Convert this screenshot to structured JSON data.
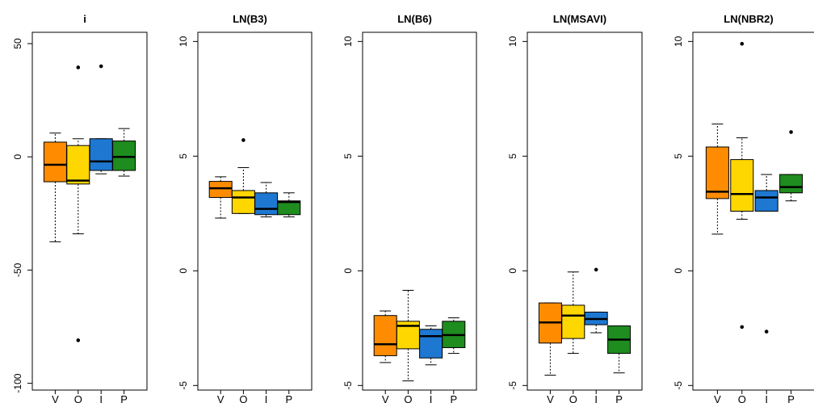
{
  "chart_data": [
    {
      "type": "box",
      "title": "i",
      "ylim": [
        -103,
        55
      ],
      "yticks": [
        50,
        0,
        -50,
        -100
      ],
      "categories": [
        "V",
        "O",
        "I",
        "P"
      ],
      "boxes": [
        {
          "category": "V",
          "whisker_low": -37.5,
          "q1": -11,
          "median": -3.5,
          "q3": 6.5,
          "whisker_high": 10.5,
          "outliers": []
        },
        {
          "category": "O",
          "whisker_low": -34,
          "q1": -12,
          "median": -10.5,
          "q3": 5,
          "whisker_high": 8,
          "outliers": [
            39.5,
            -81
          ]
        },
        {
          "category": "I",
          "whisker_low": -7.5,
          "q1": -6,
          "median": -2,
          "q3": 8,
          "whisker_high": 8,
          "outliers": [
            40
          ]
        },
        {
          "category": "P",
          "whisker_low": -8.5,
          "q1": -6,
          "median": 0,
          "q3": 7,
          "whisker_high": 12.5,
          "outliers": []
        }
      ]
    },
    {
      "type": "box",
      "title": "LN(B3)",
      "ylim": [
        -5.2,
        10.4
      ],
      "yticks": [
        10,
        5,
        0,
        -5
      ],
      "categories": [
        "V",
        "O",
        "I",
        "P"
      ],
      "boxes": [
        {
          "category": "V",
          "whisker_low": 2.3,
          "q1": 3.2,
          "median": 3.6,
          "q3": 3.9,
          "whisker_high": 4.1,
          "outliers": []
        },
        {
          "category": "O",
          "whisker_low": 2.5,
          "q1": 2.5,
          "median": 3.2,
          "q3": 3.5,
          "whisker_high": 4.5,
          "outliers": [
            5.7
          ]
        },
        {
          "category": "I",
          "whisker_low": 2.35,
          "q1": 2.45,
          "median": 2.7,
          "q3": 3.4,
          "whisker_high": 3.85,
          "outliers": []
        },
        {
          "category": "P",
          "whisker_low": 2.35,
          "q1": 2.45,
          "median": 3.0,
          "q3": 3.05,
          "whisker_high": 3.4,
          "outliers": []
        }
      ]
    },
    {
      "type": "box",
      "title": "LN(B6)",
      "ylim": [
        -5.2,
        10.4
      ],
      "yticks": [
        10,
        5,
        0,
        -5
      ],
      "categories": [
        "V",
        "O",
        "I",
        "P"
      ],
      "boxes": [
        {
          "category": "V",
          "whisker_low": -4.0,
          "q1": -3.7,
          "median": -3.2,
          "q3": -1.95,
          "whisker_high": -1.75,
          "outliers": []
        },
        {
          "category": "O",
          "whisker_low": -4.8,
          "q1": -3.4,
          "median": -2.4,
          "q3": -2.2,
          "whisker_high": -0.85,
          "outliers": []
        },
        {
          "category": "I",
          "whisker_low": -4.1,
          "q1": -3.8,
          "median": -2.85,
          "q3": -2.55,
          "whisker_high": -2.4,
          "outliers": []
        },
        {
          "category": "P",
          "whisker_low": -3.6,
          "q1": -3.35,
          "median": -2.8,
          "q3": -2.2,
          "whisker_high": -2.05,
          "outliers": []
        }
      ]
    },
    {
      "type": "box",
      "title": "LN(MSAVI)",
      "ylim": [
        -5.2,
        10.4
      ],
      "yticks": [
        10,
        5,
        0,
        -5
      ],
      "categories": [
        "V",
        "O",
        "I",
        "P"
      ],
      "boxes": [
        {
          "category": "V",
          "whisker_low": -4.55,
          "q1": -3.15,
          "median": -2.25,
          "q3": -1.4,
          "whisker_high": -1.4,
          "outliers": []
        },
        {
          "category": "O",
          "whisker_low": -3.6,
          "q1": -2.95,
          "median": -1.95,
          "q3": -1.5,
          "whisker_high": -0.05,
          "outliers": []
        },
        {
          "category": "I",
          "whisker_low": -2.7,
          "q1": -2.35,
          "median": -2.1,
          "q3": -1.8,
          "whisker_high": -1.8,
          "outliers": [
            0.05
          ]
        },
        {
          "category": "P",
          "whisker_low": -4.45,
          "q1": -3.6,
          "median": -3.0,
          "q3": -2.4,
          "whisker_high": -2.4,
          "outliers": []
        }
      ]
    },
    {
      "type": "box",
      "title": "LN(NBR2)",
      "ylim": [
        -5.2,
        10.4
      ],
      "yticks": [
        10,
        5,
        0,
        -5
      ],
      "categories": [
        "V",
        "O",
        "I",
        "P"
      ],
      "boxes": [
        {
          "category": "V",
          "whisker_low": 1.6,
          "q1": 3.15,
          "median": 3.45,
          "q3": 5.4,
          "whisker_high": 6.4,
          "outliers": []
        },
        {
          "category": "O",
          "whisker_low": 2.25,
          "q1": 2.6,
          "median": 3.35,
          "q3": 4.85,
          "whisker_high": 5.8,
          "outliers": [
            9.9,
            -2.45
          ]
        },
        {
          "category": "I",
          "whisker_low": 2.6,
          "q1": 2.6,
          "median": 3.2,
          "q3": 3.5,
          "whisker_high": 4.2,
          "outliers": [
            -2.65
          ]
        },
        {
          "category": "P",
          "whisker_low": 3.05,
          "q1": 3.4,
          "median": 3.65,
          "q3": 4.2,
          "whisker_high": 4.2,
          "outliers": [
            6.05
          ]
        }
      ]
    }
  ],
  "colors": {
    "V": "#ff8c00",
    "O": "#ffd700",
    "I": "#1e78d2",
    "P": "#1e8c1e",
    "axis": "#000000",
    "background": "#ffffff"
  }
}
